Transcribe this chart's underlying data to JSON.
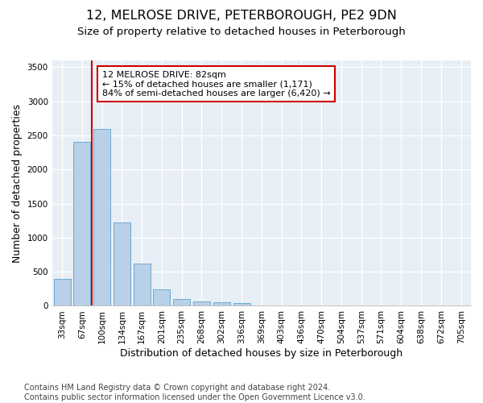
{
  "title": "12, MELROSE DRIVE, PETERBOROUGH, PE2 9DN",
  "subtitle": "Size of property relative to detached houses in Peterborough",
  "xlabel": "Distribution of detached houses by size in Peterborough",
  "ylabel": "Number of detached properties",
  "categories": [
    "33sqm",
    "67sqm",
    "100sqm",
    "134sqm",
    "167sqm",
    "201sqm",
    "235sqm",
    "268sqm",
    "302sqm",
    "336sqm",
    "369sqm",
    "403sqm",
    "436sqm",
    "470sqm",
    "504sqm",
    "537sqm",
    "571sqm",
    "604sqm",
    "638sqm",
    "672sqm",
    "705sqm"
  ],
  "values": [
    390,
    2410,
    2600,
    1220,
    620,
    240,
    100,
    70,
    55,
    45,
    0,
    0,
    0,
    0,
    0,
    0,
    0,
    0,
    0,
    0,
    0
  ],
  "bar_color": "#b8d0e8",
  "bar_edge_color": "#6aaad4",
  "vline_x": 1.5,
  "vline_color": "#cc0000",
  "annotation_text": "12 MELROSE DRIVE: 82sqm\n← 15% of detached houses are smaller (1,171)\n84% of semi-detached houses are larger (6,420) →",
  "annotation_box_color": "#ffffff",
  "annotation_box_edge": "#cc0000",
  "ylim": [
    0,
    3600
  ],
  "yticks": [
    0,
    500,
    1000,
    1500,
    2000,
    2500,
    3000,
    3500
  ],
  "footer": "Contains HM Land Registry data © Crown copyright and database right 2024.\nContains public sector information licensed under the Open Government Licence v3.0.",
  "plot_background": "#e8eef5",
  "title_fontsize": 11.5,
  "subtitle_fontsize": 9.5,
  "axis_label_fontsize": 9,
  "tick_fontsize": 7.5,
  "footer_fontsize": 7
}
